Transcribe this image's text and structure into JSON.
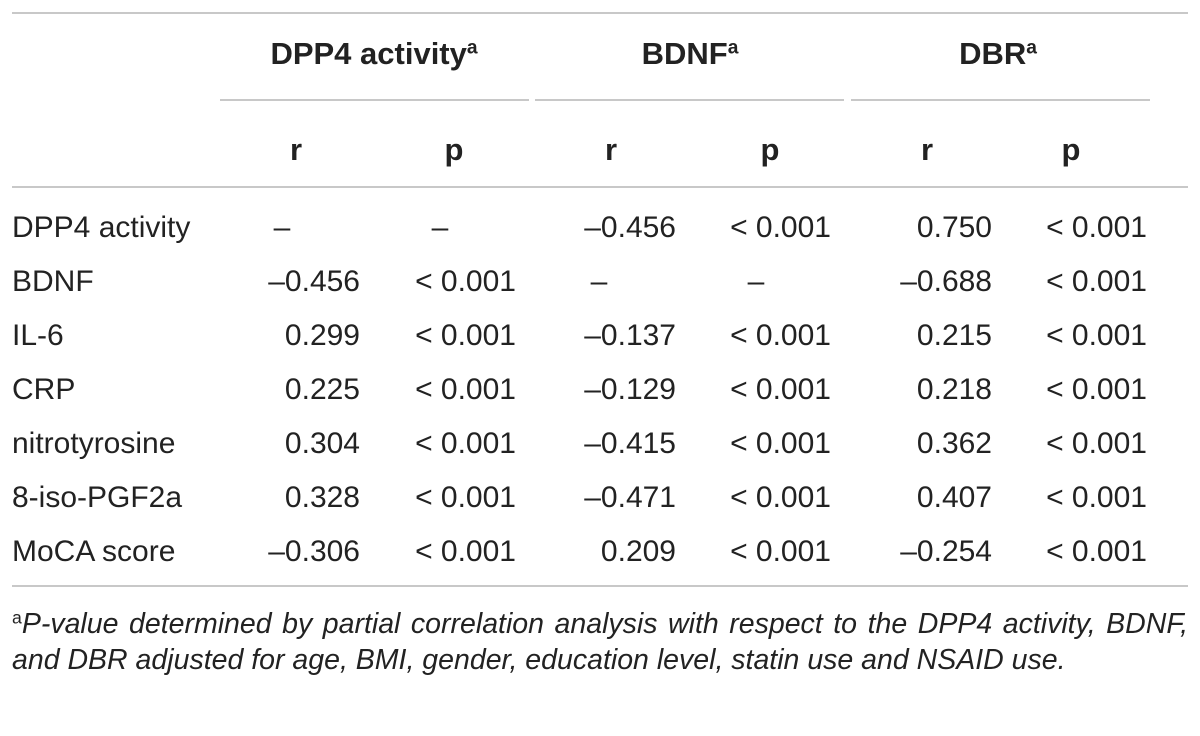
{
  "table": {
    "groups": [
      {
        "label": "DPP4 activity",
        "sup": "a"
      },
      {
        "label": "BDNF",
        "sup": "a"
      },
      {
        "label": "DBR",
        "sup": "a"
      }
    ],
    "subheaders": [
      "r",
      "p",
      "r",
      "p",
      "r",
      "p"
    ],
    "rows": [
      {
        "label": "DPP4 activity",
        "cells": [
          "–",
          "–",
          "–0.456",
          "< 0.001",
          "0.750",
          "< 0.001"
        ]
      },
      {
        "label": "BDNF",
        "cells": [
          "–0.456",
          "< 0.001",
          "–",
          "–",
          "–0.688",
          "< 0.001"
        ]
      },
      {
        "label": "IL-6",
        "cells": [
          "0.299",
          "< 0.001",
          "–0.137",
          "< 0.001",
          "0.215",
          "< 0.001"
        ]
      },
      {
        "label": "CRP",
        "cells": [
          "0.225",
          "< 0.001",
          "–0.129",
          "< 0.001",
          "0.218",
          "< 0.001"
        ]
      },
      {
        "label": "nitrotyrosine",
        "cells": [
          "0.304",
          "< 0.001",
          "–0.415",
          "< 0.001",
          "0.362",
          "< 0.001"
        ]
      },
      {
        "label": "8-iso-PGF2a",
        "cells": [
          "0.328",
          "< 0.001",
          "–0.471",
          "< 0.001",
          "0.407",
          "< 0.001"
        ]
      },
      {
        "label": "MoCA score",
        "cells": [
          "–0.306",
          "< 0.001",
          "0.209",
          "< 0.001",
          "–0.254",
          "< 0.001"
        ]
      }
    ]
  },
  "footnote": {
    "marker": "a",
    "text": "P-value determined by partial correlation analysis with respect to the DPP4 activity, BDNF, and DBR adjusted for age, BMI, gender, education level, statin use and NSAID use."
  }
}
